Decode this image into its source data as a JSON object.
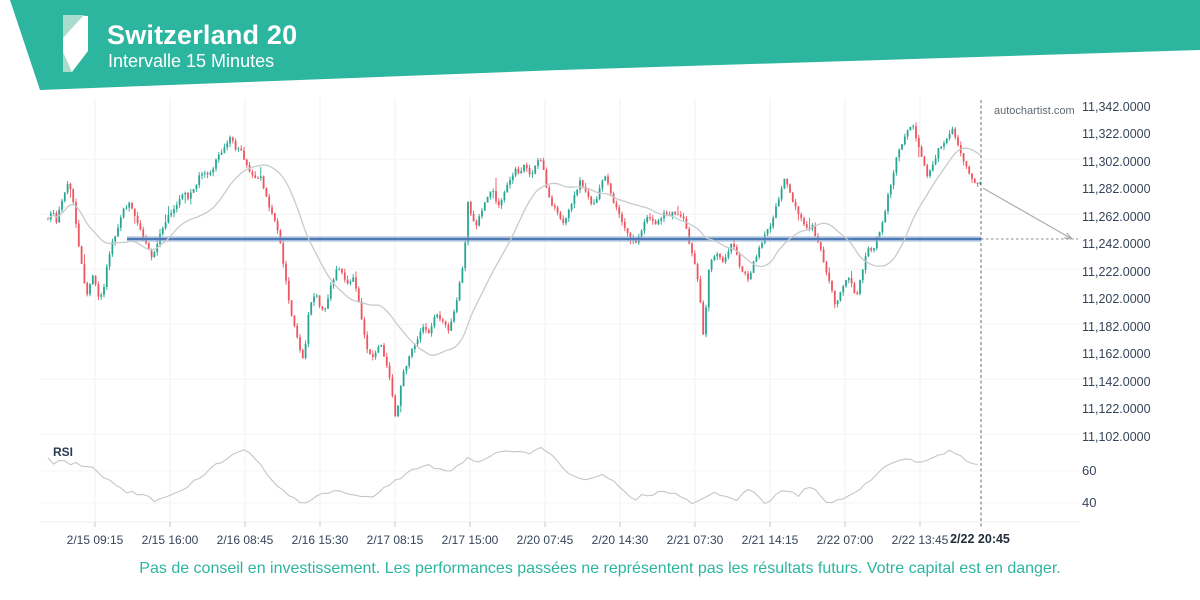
{
  "header": {
    "title": "Switzerland 20",
    "subtitle": "Intervalle 15 Minutes"
  },
  "watermark": "autochartist.com",
  "disclaimer": "Pas de conseil en investissement. Les performances passées ne représentent pas les résultats futurs. Votre capital est en danger.",
  "colors": {
    "banner_teal": "#2cb6a0",
    "logo_pale": "#aadcce",
    "candle_up": "#26a691",
    "candle_down": "#ec5560",
    "level_line": "#4d79b5",
    "level_glow": "#9fb9da",
    "moving_average": "#c8cacc",
    "rsi_line": "#c3c6c9",
    "dashed": "#4a5560",
    "arrow": "#a9acaf",
    "grid_vertical": "#f1f1f3",
    "grid_horizontal": "#f4f4f6",
    "axis_text": "#36455a",
    "disclaimer_teal": "#2cb6a0"
  },
  "chart_data": {
    "type": "candlestick",
    "instrument": "Switzerland 20",
    "interval": "15 Minutes",
    "price_axis": {
      "max": 11342,
      "min": 11102,
      "step": 20,
      "labels": [
        "11,342.0000",
        "11,322.0000",
        "11,302.0000",
        "11,282.0000",
        "11,262.0000",
        "11,242.0000",
        "11,222.0000",
        "11,202.0000",
        "11,182.0000",
        "11,162.0000",
        "11,142.0000",
        "11,122.0000",
        "11,102.0000"
      ]
    },
    "time_axis": {
      "labels": [
        "2/15 09:15",
        "2/15 16:00",
        "2/16 08:45",
        "2/16 15:30",
        "2/17 08:15",
        "2/17 15:00",
        "2/20 07:45",
        "2/20 14:30",
        "2/21 07:30",
        "2/21 14:15",
        "2/22 07:00",
        "2/22 13:45"
      ],
      "last_label": "2/22 20:45"
    },
    "support_level_price": 11246,
    "last_close_price": 11283,
    "projection": {
      "from_price": 11283,
      "to_price": 11246
    },
    "ma_window": 26,
    "price_close_waypoints_x_price": [
      [
        48,
        11262
      ],
      [
        52,
        11268
      ],
      [
        56,
        11256
      ],
      [
        60,
        11270
      ],
      [
        64,
        11278
      ],
      [
        68,
        11288
      ],
      [
        72,
        11278
      ],
      [
        76,
        11258
      ],
      [
        80,
        11235
      ],
      [
        84,
        11215
      ],
      [
        88,
        11205
      ],
      [
        92,
        11222
      ],
      [
        96,
        11212
      ],
      [
        100,
        11200
      ],
      [
        104,
        11212
      ],
      [
        108,
        11230
      ],
      [
        112,
        11245
      ],
      [
        116,
        11250
      ],
      [
        120,
        11260
      ],
      [
        124,
        11268
      ],
      [
        128,
        11272
      ],
      [
        132,
        11268
      ],
      [
        136,
        11260
      ],
      [
        140,
        11252
      ],
      [
        144,
        11245
      ],
      [
        148,
        11238
      ],
      [
        152,
        11234
      ],
      [
        156,
        11240
      ],
      [
        160,
        11250
      ],
      [
        164,
        11258
      ],
      [
        168,
        11262
      ],
      [
        172,
        11266
      ],
      [
        176,
        11270
      ],
      [
        180,
        11274
      ],
      [
        184,
        11280
      ],
      [
        188,
        11276
      ],
      [
        192,
        11282
      ],
      [
        196,
        11286
      ],
      [
        200,
        11292
      ],
      [
        204,
        11296
      ],
      [
        208,
        11292
      ],
      [
        212,
        11297
      ],
      [
        216,
        11303
      ],
      [
        220,
        11307
      ],
      [
        224,
        11311
      ],
      [
        228,
        11316
      ],
      [
        232,
        11321
      ],
      [
        236,
        11310
      ],
      [
        240,
        11312
      ],
      [
        244,
        11302
      ],
      [
        248,
        11297
      ],
      [
        252,
        11291
      ],
      [
        256,
        11288
      ],
      [
        260,
        11292
      ],
      [
        264,
        11284
      ],
      [
        268,
        11272
      ],
      [
        272,
        11264
      ],
      [
        276,
        11257
      ],
      [
        280,
        11243
      ],
      [
        284,
        11224
      ],
      [
        288,
        11205
      ],
      [
        292,
        11188
      ],
      [
        296,
        11178
      ],
      [
        300,
        11166
      ],
      [
        304,
        11158
      ],
      [
        308,
        11192
      ],
      [
        312,
        11200
      ],
      [
        316,
        11206
      ],
      [
        320,
        11198
      ],
      [
        324,
        11192
      ],
      [
        328,
        11202
      ],
      [
        332,
        11214
      ],
      [
        336,
        11222
      ],
      [
        340,
        11224
      ],
      [
        344,
        11217
      ],
      [
        348,
        11212
      ],
      [
        352,
        11219
      ],
      [
        356,
        11210
      ],
      [
        360,
        11196
      ],
      [
        364,
        11178
      ],
      [
        368,
        11164
      ],
      [
        372,
        11158
      ],
      [
        376,
        11163
      ],
      [
        380,
        11170
      ],
      [
        384,
        11160
      ],
      [
        388,
        11150
      ],
      [
        392,
        11134
      ],
      [
        396,
        11114
      ],
      [
        400,
        11135
      ],
      [
        404,
        11150
      ],
      [
        408,
        11158
      ],
      [
        412,
        11166
      ],
      [
        416,
        11171
      ],
      [
        420,
        11179
      ],
      [
        424,
        11183
      ],
      [
        428,
        11177
      ],
      [
        432,
        11185
      ],
      [
        436,
        11194
      ],
      [
        440,
        11189
      ],
      [
        444,
        11183
      ],
      [
        448,
        11180
      ],
      [
        452,
        11189
      ],
      [
        456,
        11198
      ],
      [
        460,
        11215
      ],
      [
        464,
        11232
      ],
      [
        468,
        11272
      ],
      [
        472,
        11260
      ],
      [
        476,
        11255
      ],
      [
        480,
        11263
      ],
      [
        484,
        11271
      ],
      [
        488,
        11278
      ],
      [
        492,
        11282
      ],
      [
        496,
        11275
      ],
      [
        500,
        11270
      ],
      [
        504,
        11278
      ],
      [
        508,
        11286
      ],
      [
        512,
        11292
      ],
      [
        516,
        11296
      ],
      [
        520,
        11294
      ],
      [
        524,
        11300
      ],
      [
        528,
        11295
      ],
      [
        532,
        11291
      ],
      [
        536,
        11301
      ],
      [
        540,
        11306
      ],
      [
        544,
        11295
      ],
      [
        548,
        11277
      ],
      [
        552,
        11270
      ],
      [
        556,
        11266
      ],
      [
        560,
        11261
      ],
      [
        564,
        11257
      ],
      [
        568,
        11264
      ],
      [
        572,
        11272
      ],
      [
        576,
        11281
      ],
      [
        580,
        11288
      ],
      [
        584,
        11283
      ],
      [
        588,
        11276
      ],
      [
        592,
        11271
      ],
      [
        596,
        11275
      ],
      [
        600,
        11283
      ],
      [
        604,
        11291
      ],
      [
        608,
        11287
      ],
      [
        612,
        11277
      ],
      [
        616,
        11269
      ],
      [
        620,
        11261
      ],
      [
        624,
        11254
      ],
      [
        628,
        11248
      ],
      [
        632,
        11245
      ],
      [
        636,
        11244
      ],
      [
        640,
        11249
      ],
      [
        644,
        11257
      ],
      [
        648,
        11262
      ],
      [
        652,
        11259
      ],
      [
        656,
        11256
      ],
      [
        660,
        11261
      ],
      [
        664,
        11264
      ],
      [
        668,
        11264
      ],
      [
        672,
        11265
      ],
      [
        676,
        11264
      ],
      [
        680,
        11263
      ],
      [
        684,
        11259
      ],
      [
        688,
        11247
      ],
      [
        692,
        11237
      ],
      [
        696,
        11225
      ],
      [
        700,
        11204
      ],
      [
        704,
        11168
      ],
      [
        708,
        11222
      ],
      [
        712,
        11230
      ],
      [
        716,
        11237
      ],
      [
        720,
        11231
      ],
      [
        724,
        11228
      ],
      [
        728,
        11237
      ],
      [
        732,
        11242
      ],
      [
        736,
        11235
      ],
      [
        740,
        11227
      ],
      [
        744,
        11221
      ],
      [
        748,
        11218
      ],
      [
        752,
        11225
      ],
      [
        756,
        11233
      ],
      [
        760,
        11241
      ],
      [
        764,
        11247
      ],
      [
        768,
        11253
      ],
      [
        772,
        11259
      ],
      [
        776,
        11268
      ],
      [
        780,
        11280
      ],
      [
        784,
        11291
      ],
      [
        788,
        11283
      ],
      [
        792,
        11275
      ],
      [
        796,
        11269
      ],
      [
        800,
        11263
      ],
      [
        804,
        11257
      ],
      [
        808,
        11253
      ],
      [
        812,
        11256
      ],
      [
        816,
        11247
      ],
      [
        820,
        11239
      ],
      [
        824,
        11230
      ],
      [
        828,
        11218
      ],
      [
        832,
        11207
      ],
      [
        836,
        11196
      ],
      [
        840,
        11206
      ],
      [
        844,
        11214
      ],
      [
        848,
        11221
      ],
      [
        852,
        11211
      ],
      [
        856,
        11203
      ],
      [
        860,
        11216
      ],
      [
        864,
        11229
      ],
      [
        868,
        11240
      ],
      [
        872,
        11236
      ],
      [
        876,
        11245
      ],
      [
        880,
        11253
      ],
      [
        884,
        11263
      ],
      [
        888,
        11277
      ],
      [
        892,
        11291
      ],
      [
        896,
        11303
      ],
      [
        900,
        11311
      ],
      [
        904,
        11319
      ],
      [
        908,
        11325
      ],
      [
        912,
        11331
      ],
      [
        916,
        11321
      ],
      [
        920,
        11309
      ],
      [
        924,
        11299
      ],
      [
        928,
        11292
      ],
      [
        932,
        11299
      ],
      [
        936,
        11307
      ],
      [
        940,
        11313
      ],
      [
        944,
        11317
      ],
      [
        948,
        11321
      ],
      [
        952,
        11326
      ],
      [
        956,
        11317
      ],
      [
        960,
        11309
      ],
      [
        964,
        11301
      ],
      [
        968,
        11295
      ],
      [
        972,
        11289
      ],
      [
        976,
        11285
      ],
      [
        980,
        11289
      ],
      [
        982,
        11283
      ]
    ],
    "rsi": {
      "label": "RSI",
      "ticks": [
        "60",
        "40"
      ],
      "tick_values": [
        60,
        40
      ],
      "waypoints_x_value": [
        [
          48,
          68
        ],
        [
          54,
          64
        ],
        [
          60,
          66
        ],
        [
          66,
          67
        ],
        [
          72,
          64
        ],
        [
          78,
          65
        ],
        [
          84,
          63
        ],
        [
          90,
          64
        ],
        [
          96,
          60
        ],
        [
          102,
          57
        ],
        [
          108,
          55
        ],
        [
          114,
          52
        ],
        [
          120,
          49
        ],
        [
          126,
          46
        ],
        [
          132,
          47
        ],
        [
          138,
          44
        ],
        [
          144,
          46
        ],
        [
          150,
          43
        ],
        [
          156,
          41
        ],
        [
          162,
          45
        ],
        [
          168,
          43
        ],
        [
          174,
          46
        ],
        [
          180,
          47
        ],
        [
          188,
          51
        ],
        [
          196,
          55
        ],
        [
          204,
          58
        ],
        [
          212,
          62
        ],
        [
          220,
          65
        ],
        [
          228,
          68
        ],
        [
          236,
          71
        ],
        [
          244,
          73
        ],
        [
          252,
          70
        ],
        [
          260,
          65
        ],
        [
          268,
          57
        ],
        [
          276,
          51
        ],
        [
          284,
          48
        ],
        [
          292,
          44
        ],
        [
          300,
          41
        ],
        [
          308,
          40
        ],
        [
          316,
          44
        ],
        [
          324,
          46
        ],
        [
          332,
          47
        ],
        [
          340,
          48
        ],
        [
          348,
          46
        ],
        [
          356,
          44
        ],
        [
          364,
          45
        ],
        [
          372,
          44
        ],
        [
          380,
          48
        ],
        [
          388,
          51
        ],
        [
          396,
          54
        ],
        [
          404,
          57
        ],
        [
          412,
          60
        ],
        [
          420,
          63
        ],
        [
          428,
          64
        ],
        [
          436,
          62
        ],
        [
          444,
          59
        ],
        [
          452,
          61
        ],
        [
          460,
          64
        ],
        [
          468,
          68
        ],
        [
          476,
          65
        ],
        [
          484,
          67
        ],
        [
          492,
          70
        ],
        [
          500,
          72
        ],
        [
          508,
          73
        ],
        [
          516,
          71
        ],
        [
          524,
          72
        ],
        [
          532,
          71
        ],
        [
          540,
          75
        ],
        [
          548,
          72
        ],
        [
          556,
          67
        ],
        [
          564,
          61
        ],
        [
          572,
          57
        ],
        [
          580,
          56
        ],
        [
          588,
          54
        ],
        [
          596,
          56
        ],
        [
          604,
          58
        ],
        [
          612,
          54
        ],
        [
          620,
          50
        ],
        [
          628,
          44
        ],
        [
          636,
          42
        ],
        [
          644,
          46
        ],
        [
          652,
          44
        ],
        [
          660,
          47
        ],
        [
          668,
          46
        ],
        [
          676,
          47
        ],
        [
          684,
          43
        ],
        [
          690,
          39
        ],
        [
          698,
          42
        ],
        [
          706,
          44
        ],
        [
          714,
          47
        ],
        [
          722,
          45
        ],
        [
          730,
          43
        ],
        [
          738,
          42
        ],
        [
          746,
          49
        ],
        [
          754,
          47
        ],
        [
          762,
          41
        ],
        [
          768,
          39
        ],
        [
          776,
          45
        ],
        [
          784,
          49
        ],
        [
          792,
          46
        ],
        [
          800,
          45
        ],
        [
          808,
          51
        ],
        [
          816,
          48
        ],
        [
          824,
          42
        ],
        [
          830,
          40
        ],
        [
          838,
          42
        ],
        [
          846,
          43
        ],
        [
          854,
          46
        ],
        [
          862,
          50
        ],
        [
          870,
          54
        ],
        [
          878,
          58
        ],
        [
          886,
          63
        ],
        [
          894,
          65
        ],
        [
          902,
          66
        ],
        [
          910,
          68
        ],
        [
          918,
          65
        ],
        [
          926,
          67
        ],
        [
          934,
          69
        ],
        [
          942,
          70
        ],
        [
          950,
          73
        ],
        [
          958,
          70
        ],
        [
          966,
          67
        ],
        [
          974,
          64
        ],
        [
          982,
          62
        ]
      ]
    }
  }
}
